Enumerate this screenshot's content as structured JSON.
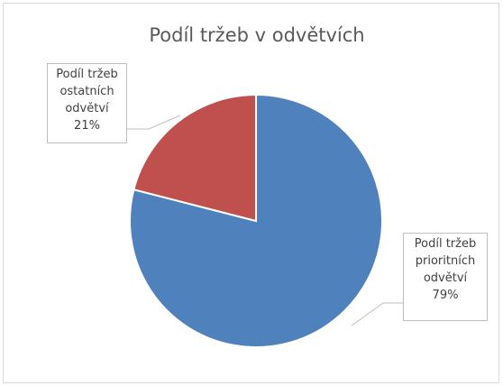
{
  "chart_data": {
    "type": "pie",
    "title": "Podíl tržeb v odvětvích",
    "categories": [
      "Podíl tržeb prioritních odvětví",
      "Podíl tržeb ostatních odvětví"
    ],
    "values": [
      79,
      21
    ],
    "value_labels": [
      "79%",
      "21%"
    ],
    "colors": [
      "#4f81bd",
      "#c0504d"
    ]
  }
}
